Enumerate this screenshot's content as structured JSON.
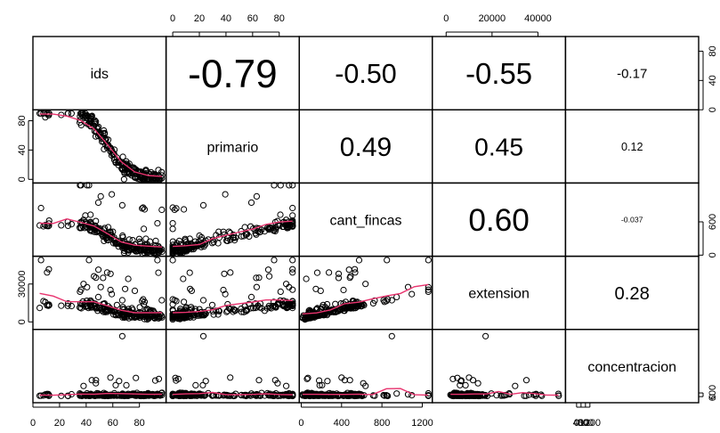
{
  "chart_data": {
    "type": "scatter",
    "variables": [
      "ids",
      "primario",
      "cant_fincas",
      "extension",
      "concentracion"
    ],
    "ranges": {
      "ids": [
        0,
        100
      ],
      "primario": [
        -5,
        95
      ],
      "cant_fincas": [
        -20,
        1300
      ],
      "extension": [
        -6000,
        52000
      ],
      "concentracion": [
        -1000,
        11000
      ]
    },
    "correlations": [
      {
        "row": 0,
        "col": 1,
        "label": "-0.79"
      },
      {
        "row": 0,
        "col": 2,
        "label": "-0.50"
      },
      {
        "row": 0,
        "col": 3,
        "label": "-0.55"
      },
      {
        "row": 0,
        "col": 4,
        "label": "-0.17"
      },
      {
        "row": 1,
        "col": 2,
        "label": "0.49"
      },
      {
        "row": 1,
        "col": 3,
        "label": "0.45"
      },
      {
        "row": 1,
        "col": 4,
        "label": "0.12"
      },
      {
        "row": 2,
        "col": 3,
        "label": "0.60"
      },
      {
        "row": 2,
        "col": 4,
        "label": "-0.037"
      },
      {
        "row": 3,
        "col": 4,
        "label": "0.28"
      }
    ],
    "axes": {
      "top": [
        {
          "col": 1,
          "ticks": [
            0,
            20,
            40,
            60,
            80
          ],
          "labels": [
            "0",
            "20",
            "40",
            "60",
            "80"
          ]
        },
        {
          "col": 3,
          "ticks": [
            0,
            20000,
            40000
          ],
          "labels": [
            "0",
            "20000",
            "40000"
          ]
        }
      ],
      "bottom": [
        {
          "col": 0,
          "ticks": [
            0,
            20,
            40,
            60,
            80
          ],
          "labels": [
            "0",
            "20",
            "40",
            "60",
            "80"
          ]
        },
        {
          "col": 2,
          "ticks": [
            0,
            400,
            800,
            1200
          ],
          "labels": [
            "0",
            "400",
            "800",
            "1200"
          ]
        },
        {
          "col": 4,
          "ticks": [
            0,
            400,
            800,
            1200
          ],
          "labels": [
            "0",
            "400",
            "800",
            "1200"
          ]
        }
      ],
      "left": [
        {
          "row": 1,
          "ticks": [
            0,
            40,
            80
          ],
          "labels": [
            "0",
            "40",
            "80"
          ]
        },
        {
          "row": 3,
          "ticks": [
            0,
            30000
          ],
          "labels": [
            "0",
            "30000"
          ]
        }
      ],
      "right": [
        {
          "row": 0,
          "ticks": [
            0,
            40,
            80
          ],
          "labels": [
            "0",
            "40",
            "80"
          ]
        },
        {
          "row": 2,
          "ticks": [
            0,
            600
          ],
          "labels": [
            "0",
            "600"
          ]
        },
        {
          "row": 4,
          "ticks": [
            0,
            600
          ],
          "labels": [
            "0",
            "600"
          ]
        }
      ]
    },
    "smoother_color": "#e8336e",
    "point_count": 220
  }
}
